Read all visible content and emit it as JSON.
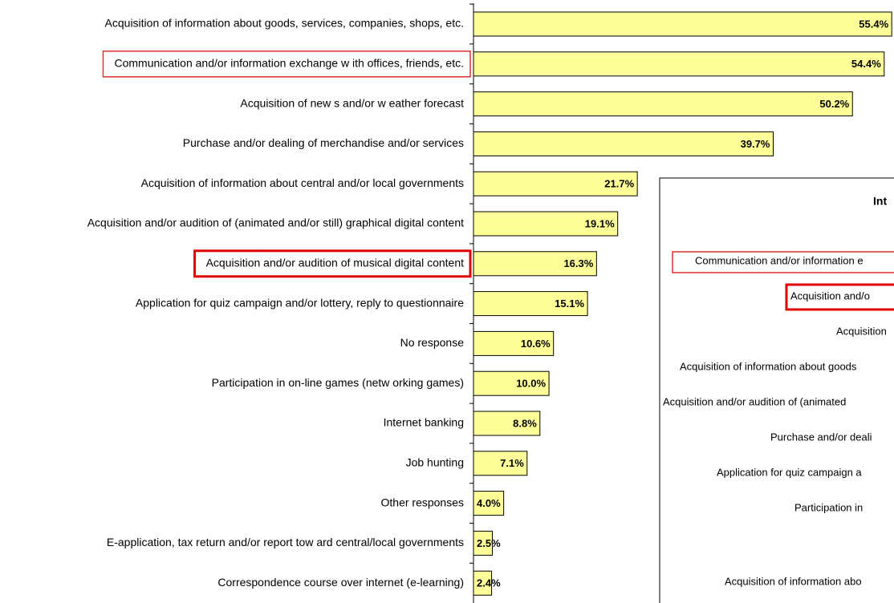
{
  "chart_data": {
    "type": "barh",
    "categories": [
      "Acquisition of information about goods, services, companies, shops, etc.",
      "Communication and/or information exchange w ith offices, friends, etc.",
      "Acquisition of new s and/or w eather forecast",
      "Purchase and/or dealing of merchandise and/or services",
      "Acquisition of information about central and/or local governments",
      "Acquisition and/or audition of (animated and/or still) graphical digital content",
      "Acquisition and/or audition of musical digital content",
      "Application for quiz campaign and/or lottery, reply to questionnaire",
      "No response",
      "Participation in on-line games (netw orking games)",
      "Internet banking",
      "Job hunting",
      "Other responses",
      "E-application, tax return and/or report tow ard central/local governments",
      "Correspondence course over internet (e-learning)"
    ],
    "values": [
      55.4,
      54.4,
      50.2,
      39.7,
      21.7,
      19.1,
      16.3,
      15.1,
      10.6,
      10.0,
      8.8,
      7.1,
      4.0,
      2.5,
      2.4
    ],
    "value_labels": [
      "55.4%",
      "54.4%",
      "50.2%",
      "39.7%",
      "21.7%",
      "19.1%",
      "16.3%",
      "15.1%",
      "10.6%",
      "10.0%",
      "8.8%",
      "7.1%",
      "4.0%",
      "2.5%",
      "2.4%"
    ],
    "color": "#ffff99",
    "xlim": [
      0,
      55.7
    ]
  },
  "inset": {
    "title": "Int",
    "labels": [
      "Communication and/or information e",
      "Acquisition and/o",
      "Acquisition",
      "Acquisition of information about goods",
      "Acquisition and/or audition of (animated",
      "Purchase and/or deali",
      "Application for quiz campaign a",
      "Participation in",
      "Acquisition of information abo"
    ]
  }
}
